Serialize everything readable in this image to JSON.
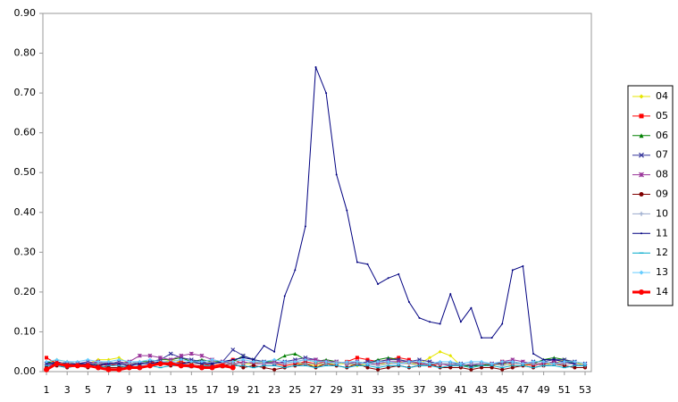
{
  "chart_data": {
    "type": "line",
    "x": [
      1,
      2,
      3,
      4,
      5,
      6,
      7,
      8,
      9,
      10,
      11,
      12,
      13,
      14,
      15,
      16,
      17,
      18,
      19,
      20,
      21,
      22,
      23,
      24,
      25,
      26,
      27,
      28,
      29,
      30,
      31,
      32,
      33,
      34,
      35,
      36,
      37,
      38,
      39,
      40,
      41,
      42,
      43,
      44,
      45,
      46,
      47,
      48,
      49,
      50,
      51,
      52,
      53
    ],
    "xlim": [
      1,
      53
    ],
    "xticks": [
      1,
      3,
      5,
      7,
      9,
      11,
      13,
      15,
      17,
      19,
      21,
      23,
      25,
      27,
      29,
      31,
      33,
      35,
      37,
      39,
      41,
      43,
      45,
      47,
      49,
      51,
      53
    ],
    "ylim": [
      0,
      0.9
    ],
    "yticks": [
      {
        "value": 0,
        "label": "0.00"
      },
      {
        "value": 0.1,
        "label": "0.10"
      },
      {
        "value": 0.2,
        "label": "0.20"
      },
      {
        "value": 0.3,
        "label": "0.30"
      },
      {
        "value": 0.4,
        "label": "0.40"
      },
      {
        "value": 0.5,
        "label": "0.50"
      },
      {
        "value": 0.6,
        "label": "0.60"
      },
      {
        "value": 0.7,
        "label": "0.70"
      },
      {
        "value": 0.8,
        "label": "0.80"
      },
      {
        "value": 0.9,
        "label": "0.90"
      }
    ],
    "legend": "right",
    "series": [
      {
        "name": "04",
        "color": "#e6e600",
        "marker": "diamond",
        "width": 1,
        "values": [
          0.02,
          0.03,
          0.025,
          0.02,
          0.02,
          0.03,
          0.03,
          0.035,
          0.02,
          0.02,
          0.025,
          0.02,
          0.03,
          0.025,
          0.02,
          0.02,
          0.015,
          0.02,
          0.03,
          0.02,
          0.02,
          0.025,
          0.02,
          0.015,
          0.02,
          0.02,
          0.015,
          0.02,
          0.02,
          0.02,
          0.015,
          0.02,
          0.02,
          0.02,
          0.025,
          0.02,
          0.02,
          0.035,
          0.05,
          0.04,
          0.015,
          0.01,
          0.015,
          0.015,
          0.02,
          0.015,
          0.015,
          0.02,
          0.02,
          0.02,
          0.03,
          0.025,
          0.015
        ]
      },
      {
        "name": "05",
        "color": "#ff0000",
        "marker": "square",
        "width": 1,
        "values": [
          0.035,
          0.02,
          0.02,
          0.015,
          0.02,
          0.02,
          0.015,
          0.02,
          0.02,
          0.02,
          0.025,
          0.02,
          0.02,
          0.025,
          0.02,
          0.02,
          0.015,
          0.02,
          0.03,
          0.02,
          0.025,
          0.02,
          0.02,
          0.015,
          0.02,
          0.025,
          0.02,
          0.025,
          0.02,
          0.025,
          0.035,
          0.03,
          0.025,
          0.03,
          0.035,
          0.03,
          0.02,
          0.015,
          0.02,
          0.015,
          0.015,
          0.015,
          0.02,
          0.015,
          0.025,
          0.02,
          0.02,
          0.015,
          0.02,
          0.025,
          0.02,
          0.02,
          0.015
        ]
      },
      {
        "name": "06",
        "color": "#008000",
        "marker": "triangle",
        "width": 1,
        "values": [
          0.025,
          0.02,
          0.02,
          0.02,
          0.015,
          0.02,
          0.02,
          0.02,
          0.02,
          0.025,
          0.025,
          0.03,
          0.03,
          0.035,
          0.025,
          0.03,
          0.025,
          0.025,
          0.025,
          0.04,
          0.03,
          0.025,
          0.025,
          0.04,
          0.045,
          0.03,
          0.025,
          0.03,
          0.025,
          0.02,
          0.025,
          0.02,
          0.03,
          0.035,
          0.03,
          0.025,
          0.02,
          0.02,
          0.02,
          0.02,
          0.015,
          0.015,
          0.015,
          0.02,
          0.02,
          0.025,
          0.02,
          0.02,
          0.03,
          0.035,
          0.03,
          0.02,
          0.015
        ]
      },
      {
        "name": "07",
        "color": "#333399",
        "marker": "x",
        "width": 1,
        "values": [
          0.02,
          0.025,
          0.02,
          0.02,
          0.025,
          0.02,
          0.02,
          0.025,
          0.02,
          0.02,
          0.025,
          0.03,
          0.045,
          0.035,
          0.03,
          0.025,
          0.02,
          0.025,
          0.055,
          0.04,
          0.03,
          0.025,
          0.02,
          0.025,
          0.03,
          0.035,
          0.03,
          0.025,
          0.025,
          0.02,
          0.02,
          0.025,
          0.025,
          0.03,
          0.03,
          0.025,
          0.03,
          0.025,
          0.02,
          0.02,
          0.02,
          0.015,
          0.02,
          0.02,
          0.02,
          0.025,
          0.02,
          0.025,
          0.025,
          0.03,
          0.03,
          0.025,
          0.02
        ]
      },
      {
        "name": "08",
        "color": "#993399",
        "marker": "star",
        "width": 1,
        "values": [
          0.015,
          0.02,
          0.015,
          0.02,
          0.02,
          0.025,
          0.02,
          0.02,
          0.025,
          0.04,
          0.04,
          0.035,
          0.03,
          0.04,
          0.045,
          0.04,
          0.03,
          0.025,
          0.02,
          0.025,
          0.02,
          0.02,
          0.025,
          0.02,
          0.025,
          0.03,
          0.03,
          0.025,
          0.025,
          0.02,
          0.025,
          0.02,
          0.02,
          0.025,
          0.025,
          0.025,
          0.02,
          0.02,
          0.02,
          0.015,
          0.015,
          0.02,
          0.02,
          0.02,
          0.025,
          0.03,
          0.025,
          0.02,
          0.02,
          0.025,
          0.02,
          0.02,
          0.015
        ]
      },
      {
        "name": "09",
        "color": "#800000",
        "marker": "circle",
        "width": 1,
        "values": [
          0.01,
          0.015,
          0.01,
          0.015,
          0.01,
          0.015,
          0.01,
          0.01,
          0.015,
          0.01,
          0.015,
          0.02,
          0.015,
          0.02,
          0.015,
          0.015,
          0.01,
          0.015,
          0.02,
          0.01,
          0.015,
          0.01,
          0.005,
          0.01,
          0.015,
          0.02,
          0.01,
          0.02,
          0.015,
          0.01,
          0.02,
          0.01,
          0.005,
          0.01,
          0.015,
          0.01,
          0.015,
          0.02,
          0.01,
          0.01,
          0.01,
          0.005,
          0.01,
          0.01,
          0.005,
          0.01,
          0.015,
          0.01,
          0.015,
          0.02,
          0.015,
          0.01,
          0.01
        ]
      },
      {
        "name": "10",
        "color": "#99aacc",
        "marker": "plus",
        "width": 1,
        "values": [
          0.02,
          0.02,
          0.025,
          0.02,
          0.02,
          0.02,
          0.025,
          0.02,
          0.02,
          0.025,
          0.02,
          0.02,
          0.025,
          0.02,
          0.02,
          0.02,
          0.025,
          0.02,
          0.02,
          0.02,
          0.025,
          0.02,
          0.02,
          0.02,
          0.025,
          0.02,
          0.02,
          0.02,
          0.025,
          0.02,
          0.02,
          0.02,
          0.015,
          0.02,
          0.02,
          0.02,
          0.015,
          0.02,
          0.02,
          0.02,
          0.015,
          0.02,
          0.02,
          0.02,
          0.015,
          0.02,
          0.02,
          0.02,
          0.015,
          0.02,
          0.02,
          0.02,
          0.015
        ]
      },
      {
        "name": "11",
        "color": "#000080",
        "marker": "dot",
        "width": 1,
        "values": [
          0.02,
          0.02,
          0.015,
          0.02,
          0.02,
          0.015,
          0.02,
          0.02,
          0.015,
          0.02,
          0.02,
          0.025,
          0.02,
          0.02,
          0.025,
          0.02,
          0.02,
          0.025,
          0.03,
          0.035,
          0.03,
          0.065,
          0.05,
          0.19,
          0.255,
          0.365,
          0.765,
          0.7,
          0.495,
          0.405,
          0.275,
          0.27,
          0.22,
          0.235,
          0.245,
          0.175,
          0.135,
          0.125,
          0.12,
          0.195,
          0.125,
          0.16,
          0.085,
          0.085,
          0.12,
          0.255,
          0.265,
          0.045,
          0.03,
          0.03,
          0.025,
          0.02,
          null
        ]
      },
      {
        "name": "12",
        "color": "#00aacc",
        "marker": "dash",
        "width": 1,
        "values": [
          0.015,
          0.015,
          0.01,
          0.015,
          0.015,
          0.01,
          0.015,
          0.015,
          0.01,
          0.015,
          0.015,
          0.01,
          0.015,
          0.015,
          0.01,
          0.015,
          0.015,
          0.01,
          0.015,
          0.015,
          0.01,
          0.015,
          0.015,
          0.01,
          0.015,
          0.015,
          0.01,
          0.015,
          0.015,
          0.01,
          0.015,
          0.015,
          0.01,
          0.015,
          0.015,
          0.01,
          0.015,
          0.015,
          0.01,
          0.015,
          0.015,
          0.01,
          0.015,
          0.015,
          0.01,
          0.015,
          0.015,
          0.01,
          0.015,
          0.015,
          0.01,
          0.015,
          0.015
        ]
      },
      {
        "name": "13",
        "color": "#66ccff",
        "marker": "diamond",
        "width": 1,
        "values": [
          0.025,
          0.03,
          0.025,
          0.025,
          0.03,
          0.025,
          0.025,
          0.03,
          0.025,
          0.025,
          0.03,
          0.025,
          0.025,
          0.03,
          0.025,
          0.025,
          0.03,
          0.025,
          0.025,
          0.03,
          0.025,
          0.025,
          0.03,
          0.025,
          0.025,
          0.03,
          0.025,
          0.025,
          0.02,
          0.025,
          0.025,
          0.02,
          0.025,
          0.025,
          0.02,
          0.025,
          0.025,
          0.02,
          0.025,
          0.025,
          0.02,
          0.025,
          0.025,
          0.02,
          0.025,
          0.025,
          0.02,
          0.025,
          0.025,
          0.02,
          0.025,
          0.025,
          0.02
        ]
      },
      {
        "name": "14",
        "color": "#ff0000",
        "marker": "circle",
        "width": 3,
        "values": [
          0.005,
          0.02,
          0.015,
          0.015,
          0.015,
          0.01,
          0.005,
          0.005,
          0.01,
          0.01,
          0.015,
          0.02,
          0.02,
          0.015,
          0.015,
          0.01,
          0.01,
          0.015,
          0.01,
          null,
          null,
          null,
          null,
          null,
          null,
          null,
          null,
          null,
          null,
          null,
          null,
          null,
          null,
          null,
          null,
          null,
          null,
          null,
          null,
          null,
          null,
          null,
          null,
          null,
          null,
          null,
          null,
          null,
          null,
          null,
          null,
          null,
          null
        ]
      }
    ]
  }
}
